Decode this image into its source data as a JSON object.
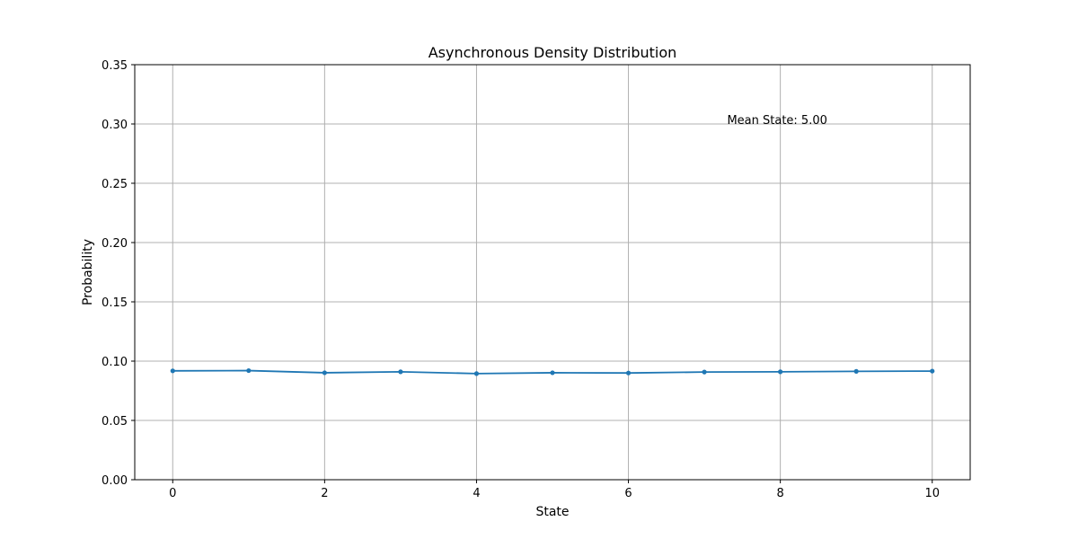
{
  "chart_data": {
    "type": "line",
    "title": "Asynchronous Density Distribution",
    "xlabel": "State",
    "ylabel": "Probability",
    "xlim": [
      -0.5,
      10.5
    ],
    "ylim": [
      0,
      0.35
    ],
    "x_ticks": [
      0,
      2,
      4,
      6,
      8,
      10
    ],
    "y_ticks": [
      0.0,
      0.05,
      0.1,
      0.15,
      0.2,
      0.25,
      0.3,
      0.35
    ],
    "y_tick_labels": [
      "0.00",
      "0.05",
      "0.10",
      "0.15",
      "0.20",
      "0.25",
      "0.30",
      "0.35"
    ],
    "grid": true,
    "series": [
      {
        "x": [
          0,
          1,
          2,
          3,
          4,
          5,
          6,
          7,
          8,
          9,
          10
        ],
        "values": [
          0.0918,
          0.092,
          0.0902,
          0.091,
          0.0895,
          0.0902,
          0.09,
          0.0908,
          0.091,
          0.0914,
          0.0916
        ],
        "color": "#1f77b4",
        "marker": "circle"
      }
    ],
    "annotations": [
      {
        "text": "Mean State: 5.00",
        "x": 7.3,
        "y": 0.303
      }
    ]
  }
}
